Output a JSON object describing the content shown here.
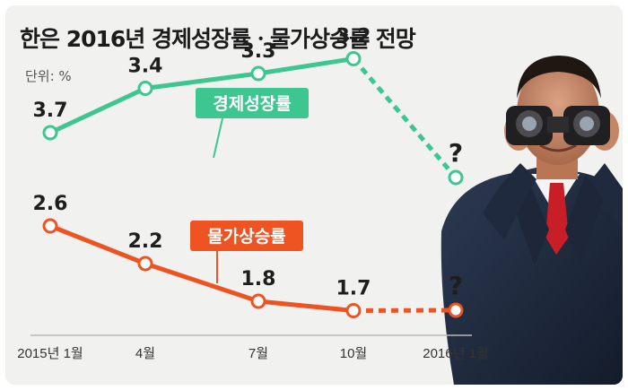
{
  "title": "한은 2016년 경제성장률ㆍ물가상승률 전망",
  "unit_label": "단위: %",
  "colors": {
    "growth": "#3ec690",
    "inflation": "#ee5422",
    "label_box_growth": "#3ec690",
    "label_box_inflation": "#ee5422"
  },
  "chart_data": {
    "type": "line",
    "title": "한은 2016년 경제성장률ㆍ물가상승률 전망",
    "unit": "단위: %",
    "categories": [
      "2015년 1월",
      "4월",
      "7월",
      "10월",
      "2016년 1월"
    ],
    "series": [
      {
        "name": "경제성장률",
        "values": [
          3.7,
          3.4,
          3.3,
          3.2,
          null
        ],
        "labels": [
          "3.7",
          "3.4",
          "3.3",
          "3.2",
          "?"
        ],
        "forecast_marker": "?"
      },
      {
        "name": "물가상승률",
        "values": [
          2.6,
          2.2,
          1.8,
          1.7,
          null
        ],
        "labels": [
          "2.6",
          "2.2",
          "1.8",
          "1.7",
          "?"
        ],
        "forecast_marker": "?"
      }
    ],
    "grid": false,
    "legend": "inline-labels"
  }
}
